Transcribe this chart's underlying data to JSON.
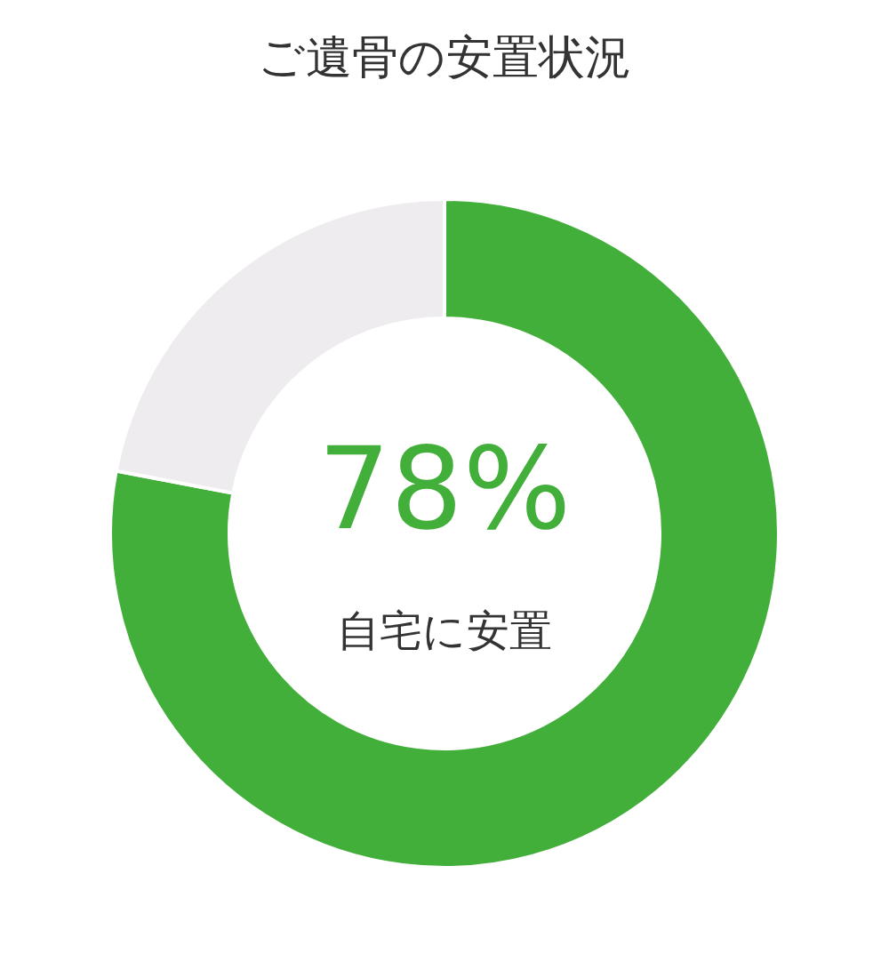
{
  "chart_data": {
    "type": "donut",
    "title": "ご遺骨の安置状況",
    "categories": [
      "自宅に安置",
      null
    ],
    "values": [
      78,
      22
    ],
    "colors": [
      "#43af3b",
      "#eeecef"
    ],
    "value_labels": [
      "78%",
      null
    ]
  }
}
